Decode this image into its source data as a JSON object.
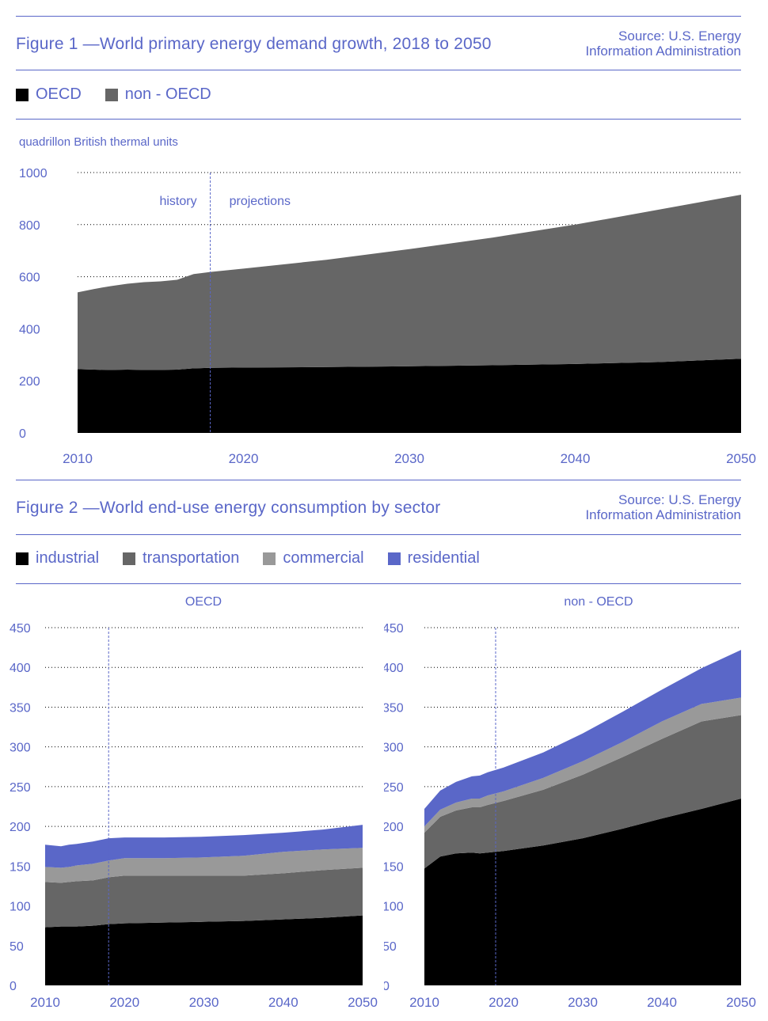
{
  "figure1": {
    "title": "Figure 1 —World primary energy demand growth, 2018 to 2050",
    "source_line1": "Source: U.S. Energy",
    "source_line2": "Information Administration",
    "legend": [
      {
        "label": "OECD",
        "color": "#000000"
      },
      {
        "label": "non - OECD",
        "color": "#666666"
      }
    ],
    "unit_label": "quadrillon British thermal units",
    "history_label": "history",
    "projections_label": "projections"
  },
  "figure2": {
    "title": "Figure 2 —World end-use energy consumption by sector",
    "source_line1": "Source: U.S. Energy",
    "source_line2": "Information Administration",
    "legend": [
      {
        "label": "industrial",
        "color": "#000000"
      },
      {
        "label": "transportation",
        "color": "#666666"
      },
      {
        "label": "commercial",
        "color": "#999999"
      },
      {
        "label": "residential",
        "color": "#5a67c8"
      }
    ]
  },
  "chart_data": [
    {
      "type": "area",
      "stacked": true,
      "title": "World primary energy demand growth, 2018 to 2050",
      "ylabel": "quadrillon British thermal units",
      "xlim": [
        2010,
        2050
      ],
      "ylim": [
        0,
        1000
      ],
      "y_ticks": [
        0,
        200,
        400,
        600,
        800,
        1000
      ],
      "x_ticks": [
        2010,
        2020,
        2030,
        2040,
        2050
      ],
      "divider_year": 2018,
      "x": [
        2010,
        2011,
        2012,
        2013,
        2014,
        2015,
        2016,
        2017,
        2018,
        2020,
        2025,
        2030,
        2035,
        2040,
        2045,
        2050
      ],
      "series": [
        {
          "name": "OECD",
          "color": "#000000",
          "values": [
            245,
            243,
            242,
            243,
            242,
            242,
            243,
            248,
            250,
            251,
            253,
            256,
            260,
            265,
            272,
            285
          ]
        },
        {
          "name": "non - OECD",
          "color": "#666666",
          "values": [
            295,
            310,
            322,
            330,
            337,
            340,
            345,
            362,
            368,
            380,
            412,
            450,
            490,
            535,
            585,
            630
          ]
        }
      ]
    },
    {
      "type": "area",
      "stacked": true,
      "title": "OECD",
      "xlim": [
        2010,
        2050
      ],
      "ylim": [
        0,
        450
      ],
      "y_ticks": [
        0,
        50,
        100,
        150,
        200,
        250,
        300,
        350,
        400,
        450
      ],
      "x_ticks": [
        2010,
        2020,
        2030,
        2040,
        2050
      ],
      "divider_year": 2018,
      "x": [
        2010,
        2012,
        2013,
        2014,
        2016,
        2018,
        2020,
        2025,
        2030,
        2035,
        2040,
        2045,
        2050
      ],
      "series": [
        {
          "name": "industrial",
          "color": "#000000",
          "values": [
            73,
            74,
            74,
            74,
            75,
            77,
            78,
            79,
            80,
            81,
            83,
            85,
            88
          ]
        },
        {
          "name": "transportation",
          "color": "#666666",
          "values": [
            57,
            55,
            56,
            57,
            57,
            59,
            60,
            59,
            58,
            57,
            58,
            60,
            60
          ]
        },
        {
          "name": "commercial",
          "color": "#999999",
          "values": [
            19,
            19,
            19,
            20,
            21,
            21,
            22,
            22,
            23,
            25,
            27,
            26,
            25
          ]
        },
        {
          "name": "residential",
          "color": "#5a67c8",
          "values": [
            28,
            27,
            28,
            27,
            28,
            28,
            26,
            26,
            26,
            26,
            24,
            25,
            29
          ]
        }
      ]
    },
    {
      "type": "area",
      "stacked": true,
      "title": "non - OECD",
      "xlim": [
        2010,
        2050
      ],
      "ylim": [
        0,
        450
      ],
      "y_ticks": [
        0,
        50,
        100,
        150,
        200,
        250,
        300,
        350,
        400,
        450
      ],
      "x_ticks": [
        2010,
        2020,
        2030,
        2040,
        2050
      ],
      "divider_year": 2019,
      "x": [
        2010,
        2012,
        2014,
        2016,
        2017,
        2018,
        2020,
        2025,
        2030,
        2035,
        2040,
        2045,
        2050
      ],
      "series": [
        {
          "name": "industrial",
          "color": "#000000",
          "values": [
            147,
            162,
            166,
            167,
            166,
            167,
            169,
            176,
            185,
            197,
            210,
            222,
            235
          ]
        },
        {
          "name": "transportation",
          "color": "#666666",
          "values": [
            45,
            50,
            54,
            57,
            58,
            60,
            63,
            70,
            80,
            90,
            100,
            110,
            105
          ]
        },
        {
          "name": "commercial",
          "color": "#999999",
          "values": [
            8,
            9,
            10,
            11,
            11,
            12,
            12,
            15,
            17,
            19,
            22,
            22,
            22
          ]
        },
        {
          "name": "residential",
          "color": "#5a67c8",
          "values": [
            22,
            24,
            26,
            28,
            29,
            29,
            30,
            32,
            35,
            38,
            40,
            45,
            60
          ]
        }
      ]
    }
  ]
}
